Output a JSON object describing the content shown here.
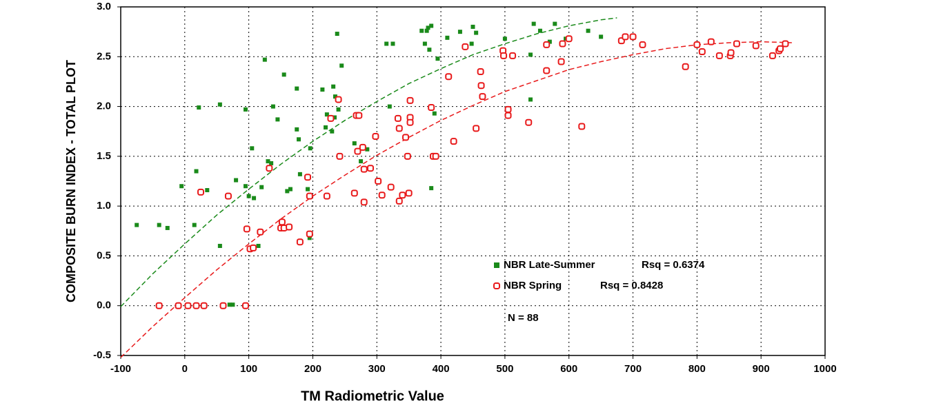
{
  "chart_data": {
    "type": "scatter",
    "xlabel": "TM Radiometric Value",
    "ylabel": "COMPOSITE  BURN  INDEX - TOTAL PLOT",
    "xlim": [
      -100,
      1000
    ],
    "ylim": [
      -0.5,
      3.0
    ],
    "xticks": [
      -100,
      0,
      100,
      200,
      300,
      400,
      500,
      600,
      700,
      800,
      900,
      1000
    ],
    "yticks": [
      {
        "value": 3,
        "label": "3.0"
      },
      2.5,
      {
        "value": 2,
        "label": "2.0"
      },
      1.5,
      {
        "value": 1,
        "label": "1.0"
      },
      0.5,
      {
        "value": 0,
        "label": "0.0"
      },
      -0.5
    ],
    "grid": true,
    "annotation": "N = 88",
    "series": [
      {
        "name": "NBR Late-Summer",
        "rsq_label": "Rsq = 0.6374",
        "color": "#1a8a1a",
        "marker": "square",
        "x": [
          -75,
          -40,
          -27,
          -5,
          15,
          18,
          22,
          35,
          55,
          55,
          70,
          75,
          80,
          95,
          95,
          100,
          105,
          108,
          115,
          120,
          125,
          130,
          135,
          138,
          145,
          150,
          155,
          160,
          165,
          175,
          175,
          178,
          180,
          192,
          196,
          195,
          215,
          220,
          222,
          230,
          232,
          234,
          235,
          238,
          240,
          245,
          265,
          275,
          285,
          315,
          320,
          325,
          370,
          375,
          378,
          380,
          382,
          385,
          385,
          390,
          395,
          410,
          430,
          448,
          450,
          455,
          500,
          540,
          545,
          555,
          570,
          578,
          595,
          630,
          650,
          540
        ],
        "values": [
          0.81,
          0.81,
          0.78,
          1.2,
          0.81,
          1.35,
          1.99,
          1.16,
          2.02,
          0.6,
          0.01,
          0.01,
          1.26,
          1.2,
          1.97,
          1.1,
          1.58,
          1.08,
          0.6,
          1.19,
          2.47,
          1.45,
          1.43,
          2.0,
          1.87,
          0.84,
          2.32,
          1.15,
          1.17,
          2.18,
          1.77,
          1.67,
          1.32,
          1.17,
          1.58,
          0.68,
          2.17,
          1.79,
          1.92,
          1.75,
          2.2,
          1.89,
          2.1,
          2.73,
          1.97,
          2.41,
          1.63,
          1.45,
          1.57,
          2.63,
          2.0,
          2.63,
          2.76,
          2.63,
          2.76,
          2.79,
          2.57,
          2.81,
          1.18,
          1.93,
          2.48,
          2.69,
          2.75,
          2.63,
          2.8,
          2.74,
          2.68,
          2.07,
          2.83,
          2.76,
          2.65,
          2.83,
          2.68,
          2.76,
          2.7,
          2.52
        ],
        "fit": {
          "x": [
            -100,
            -50,
            0,
            50,
            100,
            150,
            200,
            250,
            300,
            350,
            400,
            450,
            500,
            550,
            600,
            650,
            675
          ],
          "y": [
            -0.01,
            0.32,
            0.62,
            0.91,
            1.17,
            1.42,
            1.65,
            1.86,
            2.05,
            2.23,
            2.38,
            2.52,
            2.63,
            2.73,
            2.81,
            2.87,
            2.89
          ]
        }
      },
      {
        "name": "NBR Spring",
        "rsq_label": "Rsq = 0.8428",
        "color": "#e8191a",
        "marker": "circle",
        "x": [
          -40,
          -10,
          5,
          18,
          25,
          30,
          60,
          68,
          95,
          97,
          102,
          107,
          118,
          132,
          150,
          152,
          155,
          163,
          180,
          192,
          195,
          195,
          222,
          228,
          240,
          242,
          265,
          268,
          270,
          272,
          278,
          280,
          280,
          290,
          298,
          302,
          308,
          322,
          333,
          335,
          335,
          340,
          345,
          348,
          350,
          352,
          352,
          352,
          385,
          388,
          392,
          412,
          420,
          438,
          455,
          462,
          463,
          465,
          497,
          498,
          505,
          505,
          512,
          537,
          565,
          565,
          588,
          590,
          600,
          620,
          682,
          688,
          700,
          715,
          782,
          800,
          808,
          822,
          835,
          852,
          853,
          862,
          892,
          918,
          928,
          930,
          938
        ],
        "values": [
          0,
          0,
          0,
          0,
          1.14,
          0,
          0,
          1.1,
          0,
          0.77,
          0.57,
          0.58,
          0.74,
          1.38,
          0.78,
          0.84,
          0.78,
          0.79,
          0.64,
          1.29,
          1.1,
          0.72,
          1.1,
          1.88,
          2.07,
          1.5,
          1.13,
          1.91,
          1.55,
          1.91,
          1.59,
          1.04,
          1.37,
          1.38,
          1.7,
          1.25,
          1.11,
          1.19,
          1.88,
          1.05,
          1.78,
          1.11,
          1.69,
          1.5,
          1.13,
          1.89,
          1.84,
          2.06,
          1.99,
          1.5,
          1.5,
          2.3,
          1.65,
          2.6,
          1.78,
          2.35,
          2.21,
          2.1,
          2.56,
          2.51,
          1.97,
          1.91,
          2.51,
          1.84,
          2.62,
          2.36,
          2.45,
          2.63,
          2.68,
          1.8,
          2.66,
          2.7,
          2.7,
          2.62,
          2.4,
          2.62,
          2.55,
          2.65,
          2.51,
          2.51,
          2.54,
          2.63,
          2.61,
          2.51,
          2.56,
          2.58,
          2.63
        ],
        "fit": {
          "x": [
            -100,
            -50,
            0,
            50,
            100,
            150,
            200,
            250,
            300,
            350,
            400,
            450,
            500,
            550,
            600,
            650,
            700,
            750,
            800,
            850,
            900,
            950
          ],
          "y": [
            -0.52,
            -0.21,
            0.08,
            0.36,
            0.62,
            0.87,
            1.1,
            1.31,
            1.51,
            1.69,
            1.86,
            2.01,
            2.15,
            2.26,
            2.37,
            2.45,
            2.52,
            2.58,
            2.62,
            2.64,
            2.65,
            2.64
          ]
        }
      }
    ]
  }
}
